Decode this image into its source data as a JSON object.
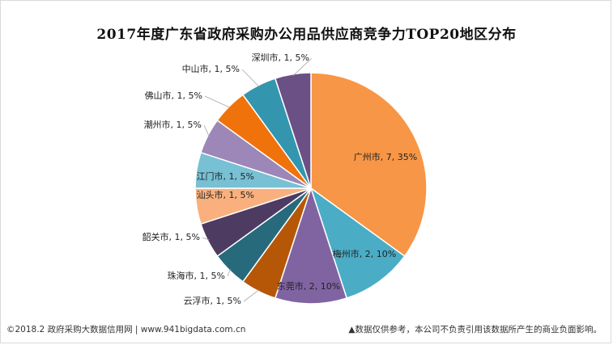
{
  "chart_data": {
    "type": "pie",
    "title": "2017年度广东省政府采购办公用品供应商竞争力TOP20地区分布",
    "slices": [
      {
        "label": "广州市",
        "value": 7,
        "percent": "35%",
        "color": "#F79646"
      },
      {
        "label": "梅州市",
        "value": 2,
        "percent": "10%",
        "color": "#4BACC6"
      },
      {
        "label": "东莞市",
        "value": 2,
        "percent": "10%",
        "color": "#8064A2"
      },
      {
        "label": "云浮市",
        "value": 1,
        "percent": "5%",
        "color": "#B65708"
      },
      {
        "label": "珠海市",
        "value": 1,
        "percent": "5%",
        "color": "#276A7C"
      },
      {
        "label": "韶关市",
        "value": 1,
        "percent": "5%",
        "color": "#4E3B62"
      },
      {
        "label": "汕头市",
        "value": 1,
        "percent": "5%",
        "color": "#F9B07E"
      },
      {
        "label": "江门市",
        "value": 1,
        "percent": "5%",
        "color": "#78C0D4"
      },
      {
        "label": "潮州市",
        "value": 1,
        "percent": "5%",
        "color": "#9C87B8"
      },
      {
        "label": "佛山市",
        "value": 1,
        "percent": "5%",
        "color": "#F0720B"
      },
      {
        "label": "中山市",
        "value": 1,
        "percent": "5%",
        "color": "#3495AE"
      },
      {
        "label": "深圳市",
        "value": 1,
        "percent": "5%",
        "color": "#6A5085"
      }
    ]
  },
  "footer": {
    "source": "©2018.2 政府采购大数据信用网 | www.941bigdata.com.cn",
    "disclaimer": "▲数据仅供参考，本公司不负责引用该数据所产生的商业负面影响。"
  }
}
